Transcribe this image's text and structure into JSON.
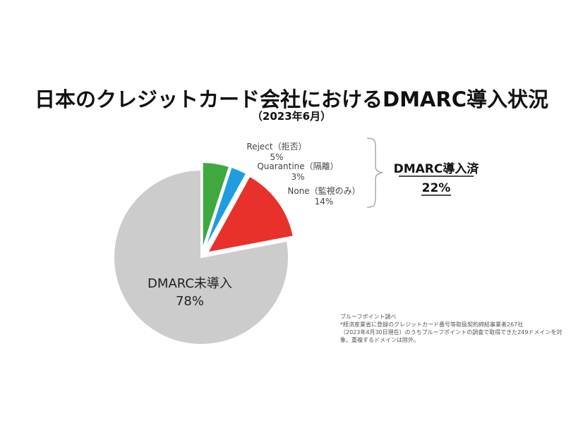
{
  "chart_data": {
    "type": "pie",
    "title": "日本のクレジットカード会社におけるDMARC導入状況",
    "subtitle": "（2023年6月）",
    "slices": [
      {
        "name": "Reject（拒否）",
        "value": 5,
        "label": "5%",
        "color": "#3fa83f"
      },
      {
        "name": "Quarantine（隔離）",
        "value": 3,
        "label": "3%",
        "color": "#1f9de0"
      },
      {
        "name": "None（監視のみ）",
        "value": 14,
        "label": "14%",
        "color": "#e8312a"
      },
      {
        "name": "DMARC未導入",
        "value": 78,
        "label": "78%",
        "color": "#cccccc"
      }
    ],
    "group_label": {
      "title": "DMARC導入済",
      "value": "22%"
    }
  },
  "notes": [
    "プルーフポイント調べ",
    "*経済産業省に登録のクレジットカード番号等取扱契約締結事業者267社",
    "（2023年4月30日現在）のうちプルーフポイントの調査で取得できた249ドメインを対",
    "象。重複するドメインは除外。"
  ]
}
